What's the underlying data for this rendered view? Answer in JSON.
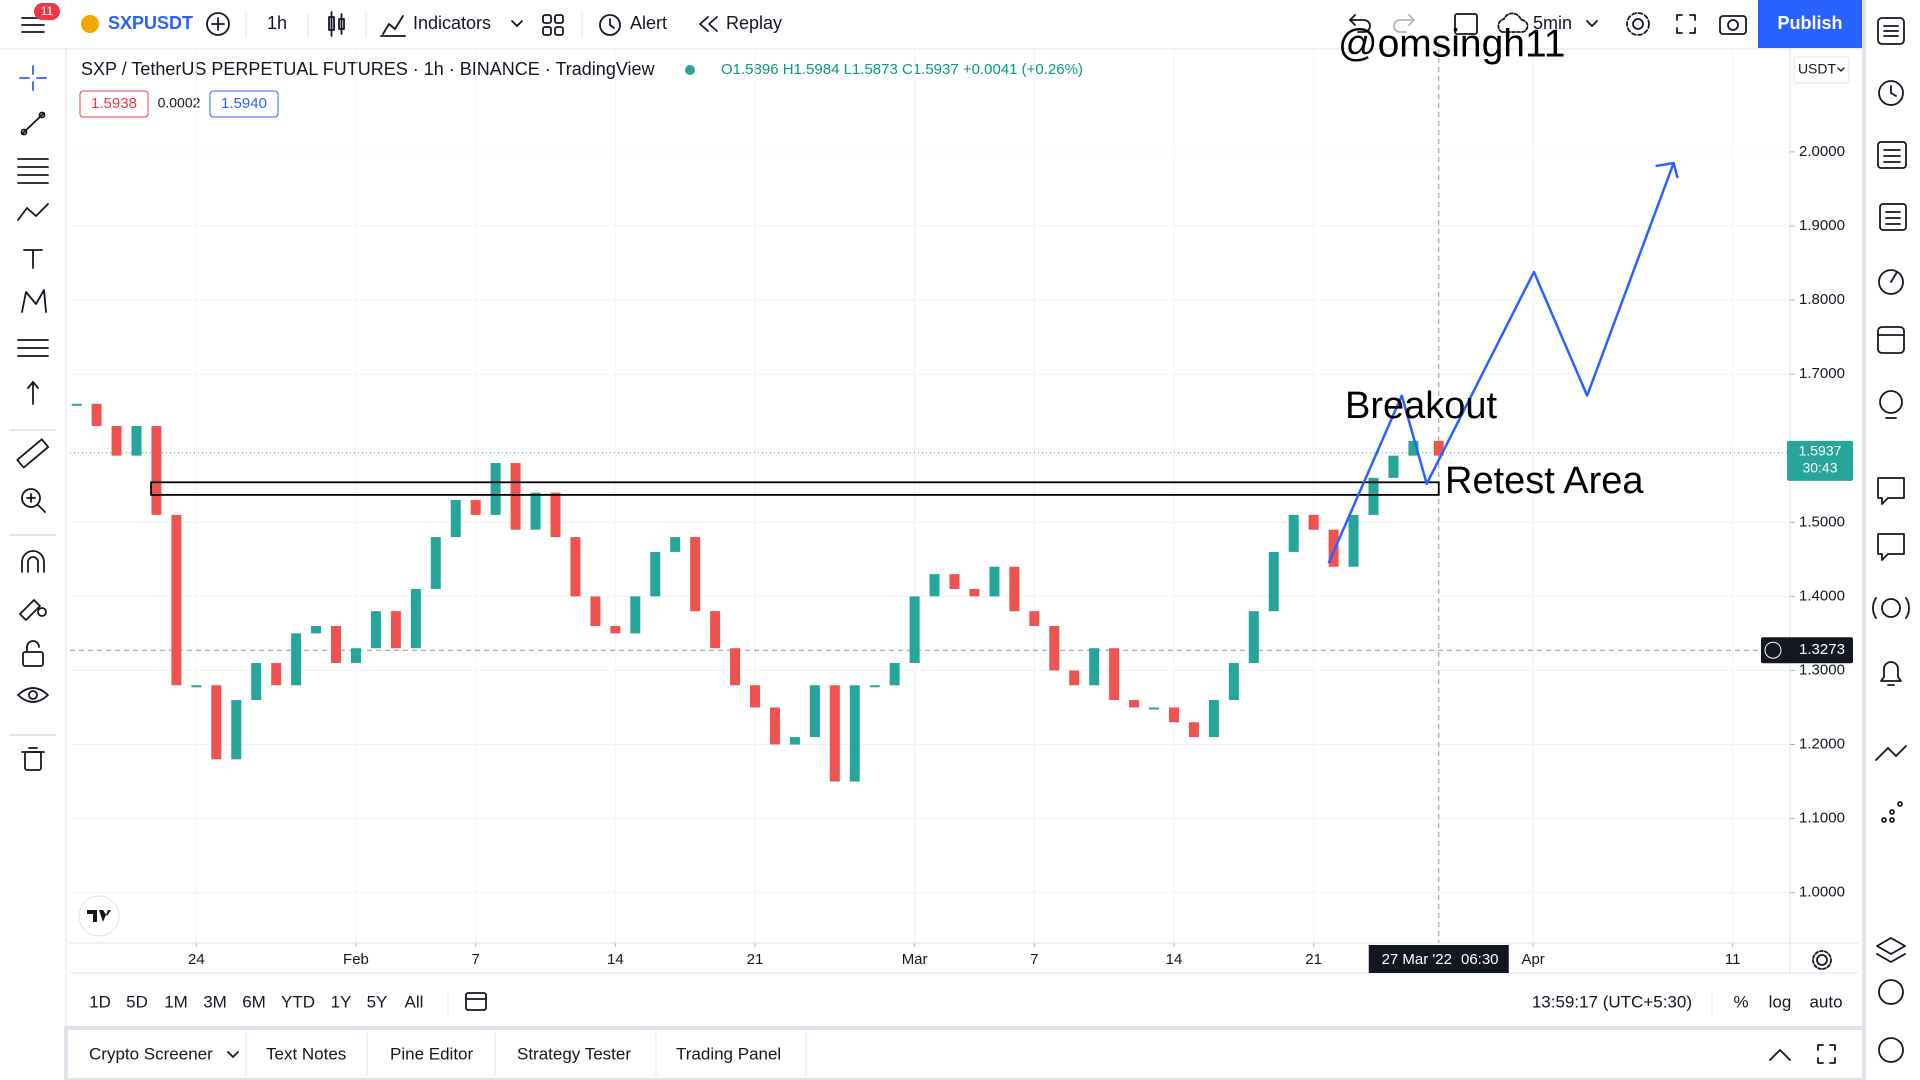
{
  "top_bar": {
    "notifications": "11",
    "symbol": "SXPUSDT",
    "interval": "1h",
    "indicators": "Indicators",
    "alert": "Alert",
    "replay": "Replay",
    "autosave": "5min",
    "publish": "Publish"
  },
  "legend": {
    "title": "SXP / TetherUS PERPETUAL FUTURES · 1h · BINANCE · TradingView",
    "ohlc": "O1.5896 H1.5984 L1.5873 C1.5937 +0.0041 (+0.26%)",
    "bid": "1.5938",
    "spread": "0.0002",
    "ask": "1.5940"
  },
  "currency": "USDT",
  "watermark": "@omsingh11",
  "chart_data": {
    "type": "candlestick",
    "x": [
      "2022-01-18",
      "2022-01-19",
      "2022-01-20",
      "2022-01-21",
      "2022-01-22",
      "2022-01-23",
      "2022-01-24",
      "2022-01-25",
      "2022-01-26",
      "2022-01-27",
      "2022-01-28",
      "2022-01-29",
      "2022-01-30",
      "2022-01-31",
      "2022-02-01",
      "2022-02-02",
      "2022-02-03",
      "2022-02-04",
      "2022-02-05",
      "2022-02-06",
      "2022-02-07",
      "2022-02-08",
      "2022-02-09",
      "2022-02-10",
      "2022-02-11",
      "2022-02-12",
      "2022-02-13",
      "2022-02-14",
      "2022-02-15",
      "2022-02-16",
      "2022-02-17",
      "2022-02-18",
      "2022-02-19",
      "2022-02-20",
      "2022-02-21",
      "2022-02-22",
      "2022-02-23",
      "2022-02-24",
      "2022-02-25",
      "2022-02-26",
      "2022-02-27",
      "2022-02-28",
      "2022-03-01",
      "2022-03-02",
      "2022-03-03",
      "2022-03-04",
      "2022-03-05",
      "2022-03-06",
      "2022-03-07",
      "2022-03-08",
      "2022-03-09",
      "2022-03-10",
      "2022-03-11",
      "2022-03-12",
      "2022-03-13",
      "2022-03-14",
      "2022-03-15",
      "2022-03-16",
      "2022-03-17",
      "2022-03-18",
      "2022-03-19",
      "2022-03-20",
      "2022-03-21",
      "2022-03-22",
      "2022-03-23",
      "2022-03-24",
      "2022-03-25",
      "2022-03-26",
      "2022-03-27T06:30"
    ],
    "values": [
      1.66,
      1.63,
      1.59,
      1.63,
      1.51,
      1.28,
      1.28,
      1.18,
      1.26,
      1.31,
      1.28,
      1.35,
      1.36,
      1.31,
      1.33,
      1.38,
      1.33,
      1.41,
      1.48,
      1.53,
      1.51,
      1.58,
      1.49,
      1.54,
      1.48,
      1.4,
      1.36,
      1.35,
      1.4,
      1.46,
      1.48,
      1.38,
      1.33,
      1.28,
      1.25,
      1.2,
      1.21,
      1.28,
      1.15,
      1.28,
      1.28,
      1.31,
      1.4,
      1.43,
      1.41,
      1.4,
      1.44,
      1.38,
      1.36,
      1.3,
      1.28,
      1.33,
      1.26,
      1.25,
      1.25,
      1.23,
      1.21,
      1.26,
      1.31,
      1.38,
      1.46,
      1.51,
      1.49,
      1.44,
      1.51,
      1.56,
      1.59,
      1.61,
      1.59
    ],
    "up_color": "#26a69a",
    "down_color": "#ef5350",
    "xlim": [
      "2022-01-17T16:00",
      "2022-04-13T21:00"
    ],
    "ylim": [
      0.932,
      2.139
    ],
    "yticks": [
      {
        "value": 2,
        "label": "2.0000"
      },
      {
        "value": 1.9,
        "label": "1.9000"
      },
      {
        "value": 1.8,
        "label": "1.8000"
      },
      {
        "value": 1.7,
        "label": "1.7000"
      },
      {
        "value": 1.6,
        "label": "1.6000"
      },
      {
        "value": 1.5,
        "label": "1.5000"
      },
      {
        "value": 1.4,
        "label": "1.4000"
      },
      {
        "value": 1.3,
        "label": "1.3000"
      },
      {
        "value": 1.2,
        "label": "1.2000"
      },
      {
        "value": 1.1,
        "label": "1.1000"
      },
      {
        "value": 1,
        "label": "1.0000"
      }
    ],
    "xticks": [
      {
        "value": "2022-01-24",
        "label": "24"
      },
      {
        "value": "2022-02-01",
        "label": "Feb"
      },
      {
        "value": "2022-02-07",
        "label": "7"
      },
      {
        "value": "2022-02-14",
        "label": "14"
      },
      {
        "value": "2022-02-21",
        "label": "21"
      },
      {
        "value": "2022-03-01",
        "label": "Mar"
      },
      {
        "value": "2022-03-07",
        "label": "7"
      },
      {
        "value": "2022-03-14",
        "label": "14"
      },
      {
        "value": "2022-03-21",
        "label": "21"
      },
      {
        "value": "2022-04-01",
        "label": "Apr"
      },
      {
        "value": "2022-04-11",
        "label": "11"
      }
    ],
    "grid": true,
    "last_price": {
      "value": 1.5937,
      "countdown": "30:43",
      "color": "#26a69a"
    },
    "crosshair": {
      "x": "2022-03-27T06:30",
      "x_label": "27 Mar '22",
      "x_time": "06:30",
      "y": 1.3273
    },
    "drawings": {
      "retest_zone": {
        "top": 1.554,
        "bottom": 1.537,
        "start": "2022-01-21T17:30",
        "end": "2022-03-27T06:30"
      },
      "projection": {
        "color": "#2962ff",
        "x": [
          "2022-03-21T18:00",
          "2022-03-25T10:00",
          "2022-03-26T16:00",
          "2022-04-01T01:00",
          "2022-04-03T17:00",
          "2022-04-08T01:00"
        ],
        "values": [
          1.445,
          1.671,
          1.552,
          1.838,
          1.671,
          1.985
        ]
      }
    },
    "annotations": [
      "Breakout",
      "Retest Area"
    ]
  },
  "range_bar": {
    "ranges": [
      "1D",
      "5D",
      "1M",
      "3M",
      "6M",
      "YTD",
      "1Y",
      "5Y",
      "All"
    ],
    "clock": "13:59:17 (UTC+5:30)",
    "percent": "%",
    "log": "log",
    "auto": "auto"
  },
  "bottom_tabs": [
    "Crypto Screener",
    "Text Notes",
    "Pine Editor",
    "Strategy Tester",
    "Trading Panel"
  ]
}
